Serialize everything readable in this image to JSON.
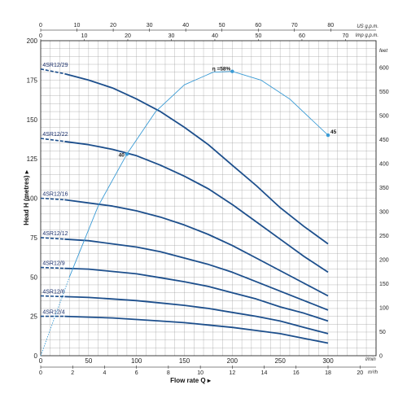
{
  "chart_data": {
    "type": "line",
    "title": "",
    "xlabel": "Flow rate Q",
    "ylabel": "Head H (metres)",
    "x_unit": "l/min",
    "x_unit_m3h": "m³/h",
    "top_unit_us": "US g.p.m.",
    "top_unit_imp": "Imp g.p.m.",
    "right_unit": "feet",
    "xlim": [
      0,
      300
    ],
    "ylim": [
      0,
      200
    ],
    "x_ticks": [
      "0",
      "50",
      "100",
      "150",
      "200",
      "250",
      "300"
    ],
    "y_ticks": [
      "0",
      "25",
      "50",
      "75",
      "100",
      "125",
      "150",
      "175",
      "200"
    ],
    "us_ticks": [
      "0",
      "10",
      "20",
      "30",
      "40",
      "50",
      "60",
      "70",
      "80"
    ],
    "imp_ticks": [
      "0",
      "10",
      "20",
      "30",
      "40",
      "50",
      "60",
      "70"
    ],
    "m3h_ticks": [
      "0",
      "2",
      "4",
      "6",
      "8",
      "10",
      "12",
      "14",
      "16",
      "18",
      "20"
    ],
    "feet_ticks": [
      "0",
      "50",
      "100",
      "150",
      "200",
      "250",
      "300",
      "350",
      "400",
      "450",
      "500",
      "550",
      "600"
    ],
    "series": [
      {
        "name": "4SR12/29",
        "x": [
          0,
          25,
          50,
          75,
          100,
          125,
          150,
          175,
          200,
          225,
          250,
          275,
          300
        ],
        "values": [
          182,
          179,
          175,
          170,
          163,
          155,
          145,
          134,
          121,
          108,
          94,
          82,
          71
        ]
      },
      {
        "name": "4SR12/22",
        "x": [
          0,
          25,
          50,
          75,
          100,
          125,
          150,
          175,
          200,
          225,
          250,
          275,
          300
        ],
        "values": [
          138,
          136,
          134,
          131,
          127,
          121,
          114,
          106,
          96,
          85,
          74,
          63,
          53
        ]
      },
      {
        "name": "4SR12/16",
        "x": [
          0,
          25,
          50,
          75,
          100,
          125,
          150,
          175,
          200,
          225,
          250,
          275,
          300
        ],
        "values": [
          100,
          99,
          97,
          95,
          92,
          88,
          83,
          77,
          70,
          62,
          54,
          46,
          38
        ]
      },
      {
        "name": "4SR12/12",
        "x": [
          0,
          25,
          50,
          75,
          100,
          125,
          150,
          175,
          200,
          225,
          250,
          275,
          300
        ],
        "values": [
          75,
          74,
          73,
          71,
          69,
          66,
          62,
          58,
          53,
          47,
          41,
          35,
          29
        ]
      },
      {
        "name": "4SR12/9",
        "x": [
          0,
          25,
          50,
          75,
          100,
          125,
          150,
          175,
          200,
          225,
          250,
          275,
          300
        ],
        "values": [
          56,
          55.5,
          55,
          53.5,
          52,
          49.5,
          47,
          44,
          40,
          36,
          31,
          27,
          22
        ]
      },
      {
        "name": "4SR12/6",
        "x": [
          0,
          25,
          50,
          75,
          100,
          125,
          150,
          175,
          200,
          225,
          250,
          275,
          300
        ],
        "values": [
          38,
          37.5,
          37,
          36,
          35,
          33.5,
          32,
          30,
          27.5,
          25,
          22,
          18,
          14
        ]
      },
      {
        "name": "4SR12/4",
        "x": [
          0,
          25,
          50,
          75,
          100,
          125,
          150,
          175,
          200,
          225,
          250,
          275,
          300
        ],
        "values": [
          25,
          25,
          24.5,
          24,
          23,
          22,
          21,
          19.5,
          18,
          16,
          14,
          11,
          8
        ]
      }
    ],
    "efficiency": {
      "label": "η =58%",
      "start_label": "40",
      "end_label": "45",
      "x": [
        0,
        30,
        60,
        90,
        120,
        150,
        180,
        200,
        230,
        260,
        300
      ],
      "values": [
        0,
        50,
        95,
        128,
        155,
        172,
        180,
        180.5,
        175,
        163,
        140
      ],
      "dashed_until": 30,
      "markers": [
        {
          "x": 90,
          "y": 128
        },
        {
          "x": 200,
          "y": 180.5
        },
        {
          "x": 300,
          "y": 140
        }
      ]
    },
    "grid": true
  }
}
